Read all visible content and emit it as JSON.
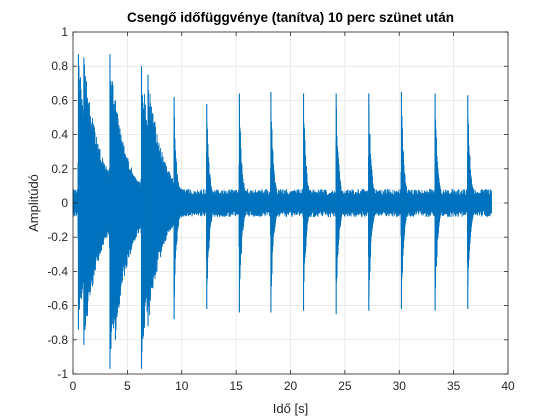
{
  "chart_data": {
    "type": "line",
    "title": "Csengő időfüggvénye (tanítva) 10 perc szünet után",
    "xlabel": "Idő [s]",
    "ylabel": "Amplitúdó",
    "xlim": [
      0,
      40
    ],
    "ylim": [
      -1,
      1
    ],
    "xticks": [
      0,
      5,
      10,
      15,
      20,
      25,
      30,
      35,
      40
    ],
    "yticks": [
      -1,
      -0.8,
      -0.6,
      -0.4,
      -0.2,
      0,
      0.2,
      0.4,
      0.6,
      0.8,
      1
    ],
    "xtick_labels": [
      "0",
      "5",
      "10",
      "15",
      "20",
      "25",
      "30",
      "35",
      "40"
    ],
    "ytick_labels": [
      "-1",
      "-0.8",
      "-0.6",
      "-0.4",
      "-0.2",
      "0",
      "0.2",
      "0.4",
      "0.6",
      "0.8",
      "1"
    ],
    "grid": true,
    "line_color": "#0072BD",
    "signal_duration_s": 38.5,
    "noise_floor_amplitude": 0.08,
    "strikes": [
      {
        "t": 0.5,
        "max": 0.87,
        "min": -0.74,
        "decay_s": 1.2
      },
      {
        "t": 1.0,
        "max": 0.85,
        "min": -0.83,
        "decay_s": 1.5
      },
      {
        "t": 3.4,
        "max": 0.87,
        "min": -0.97,
        "decay_s": 1.3
      },
      {
        "t": 3.9,
        "max": 0.6,
        "min": -0.8,
        "decay_s": 1.4
      },
      {
        "t": 6.3,
        "max": 0.8,
        "min": -0.97,
        "decay_s": 1.3
      },
      {
        "t": 6.9,
        "max": 0.75,
        "min": -0.72,
        "decay_s": 1.4
      },
      {
        "t": 9.3,
        "max": 0.62,
        "min": -0.68,
        "decay_s": 0.25
      },
      {
        "t": 12.3,
        "max": 0.58,
        "min": -0.62,
        "decay_s": 0.25
      },
      {
        "t": 15.3,
        "max": 0.64,
        "min": -0.64,
        "decay_s": 0.25
      },
      {
        "t": 18.2,
        "max": 0.65,
        "min": -0.64,
        "decay_s": 0.25
      },
      {
        "t": 21.2,
        "max": 0.64,
        "min": -0.63,
        "decay_s": 0.25
      },
      {
        "t": 24.2,
        "max": 0.64,
        "min": -0.65,
        "decay_s": 0.25
      },
      {
        "t": 27.2,
        "max": 0.64,
        "min": -0.63,
        "decay_s": 0.25
      },
      {
        "t": 30.2,
        "max": 0.65,
        "min": -0.62,
        "decay_s": 0.25
      },
      {
        "t": 33.3,
        "max": 0.64,
        "min": -0.63,
        "decay_s": 0.25
      },
      {
        "t": 36.3,
        "max": 0.63,
        "min": -0.62,
        "decay_s": 0.25
      }
    ]
  }
}
